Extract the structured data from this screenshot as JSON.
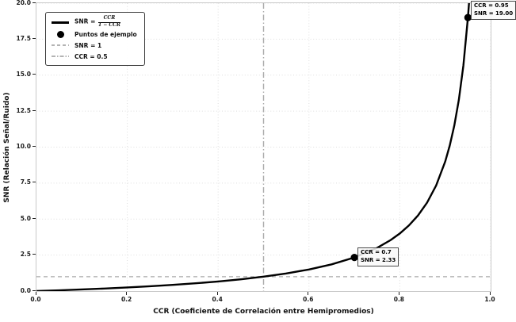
{
  "chart_data": {
    "type": "line",
    "title": "",
    "xlabel": "CCR (Coeficiente de Correlación entre Hemipromedios)",
    "ylabel": "SNR (Relación Señal/Ruido)",
    "xlim": [
      0,
      1
    ],
    "ylim": [
      0,
      20
    ],
    "grid": true,
    "legend_position": "upper-left",
    "x_ticks": {
      "values": [
        0,
        0.2,
        0.4,
        0.6,
        0.8,
        1.0
      ],
      "labels": [
        "0.0",
        "0.2",
        "0.4",
        "0.6",
        "0.8",
        "1.0"
      ]
    },
    "y_ticks": {
      "values": [
        0,
        2.5,
        5,
        7.5,
        10,
        12.5,
        15,
        17.5,
        20
      ],
      "labels": [
        "0.0",
        "2.5",
        "5.0",
        "7.5",
        "10.0",
        "12.5",
        "15.0",
        "17.5",
        "20.0"
      ]
    },
    "series": [
      {
        "name": "SNR = CCR / (1 − CCR)",
        "type": "line",
        "color": "#000000",
        "line_width": 2.4,
        "x": [
          0,
          0.05,
          0.1,
          0.15,
          0.2,
          0.25,
          0.3,
          0.35,
          0.4,
          0.45,
          0.5,
          0.55,
          0.6,
          0.65,
          0.7,
          0.75,
          0.78,
          0.8,
          0.82,
          0.84,
          0.86,
          0.88,
          0.9,
          0.91,
          0.92,
          0.93,
          0.94,
          0.95,
          0.9524
        ],
        "y": [
          0,
          0.0526,
          0.1111,
          0.1765,
          0.25,
          0.3333,
          0.4286,
          0.5385,
          0.6667,
          0.8182,
          1.0,
          1.2222,
          1.5,
          1.8571,
          2.3333,
          3.0,
          3.5455,
          4.0,
          4.5556,
          5.25,
          6.1429,
          7.3333,
          9.0,
          10.1111,
          11.5,
          13.2857,
          15.6667,
          19.0,
          20.0
        ]
      },
      {
        "name": "Puntos de ejemplo",
        "type": "scatter",
        "color": "#000000",
        "marker_radius": 4.6,
        "x": [
          0.7,
          0.95
        ],
        "y": [
          2.3333,
          19.0
        ]
      },
      {
        "name": "SNR = 1",
        "type": "hline",
        "y": 1,
        "color": "#a8a8a8",
        "style": "dashed"
      },
      {
        "name": "CCR = 0.5",
        "type": "vline",
        "x": 0.5,
        "color": "#ababab",
        "style": "dashdot"
      }
    ],
    "grid_color": "#dedede",
    "spine_color": "#c9c9c9"
  },
  "legend": {
    "item1_prefix": "SNR = ",
    "item1_frac_num": "CCR",
    "item1_frac_den": "1 − CCR",
    "item2": "Puntos de ejemplo",
    "item3": "SNR = 1",
    "item4": "CCR = 0.5"
  },
  "annotations": [
    {
      "line1": "CCR = 0.7",
      "line2": "SNR = 2.33"
    },
    {
      "line1": "CCR = 0.95",
      "line2": "SNR = 19.00"
    }
  ]
}
